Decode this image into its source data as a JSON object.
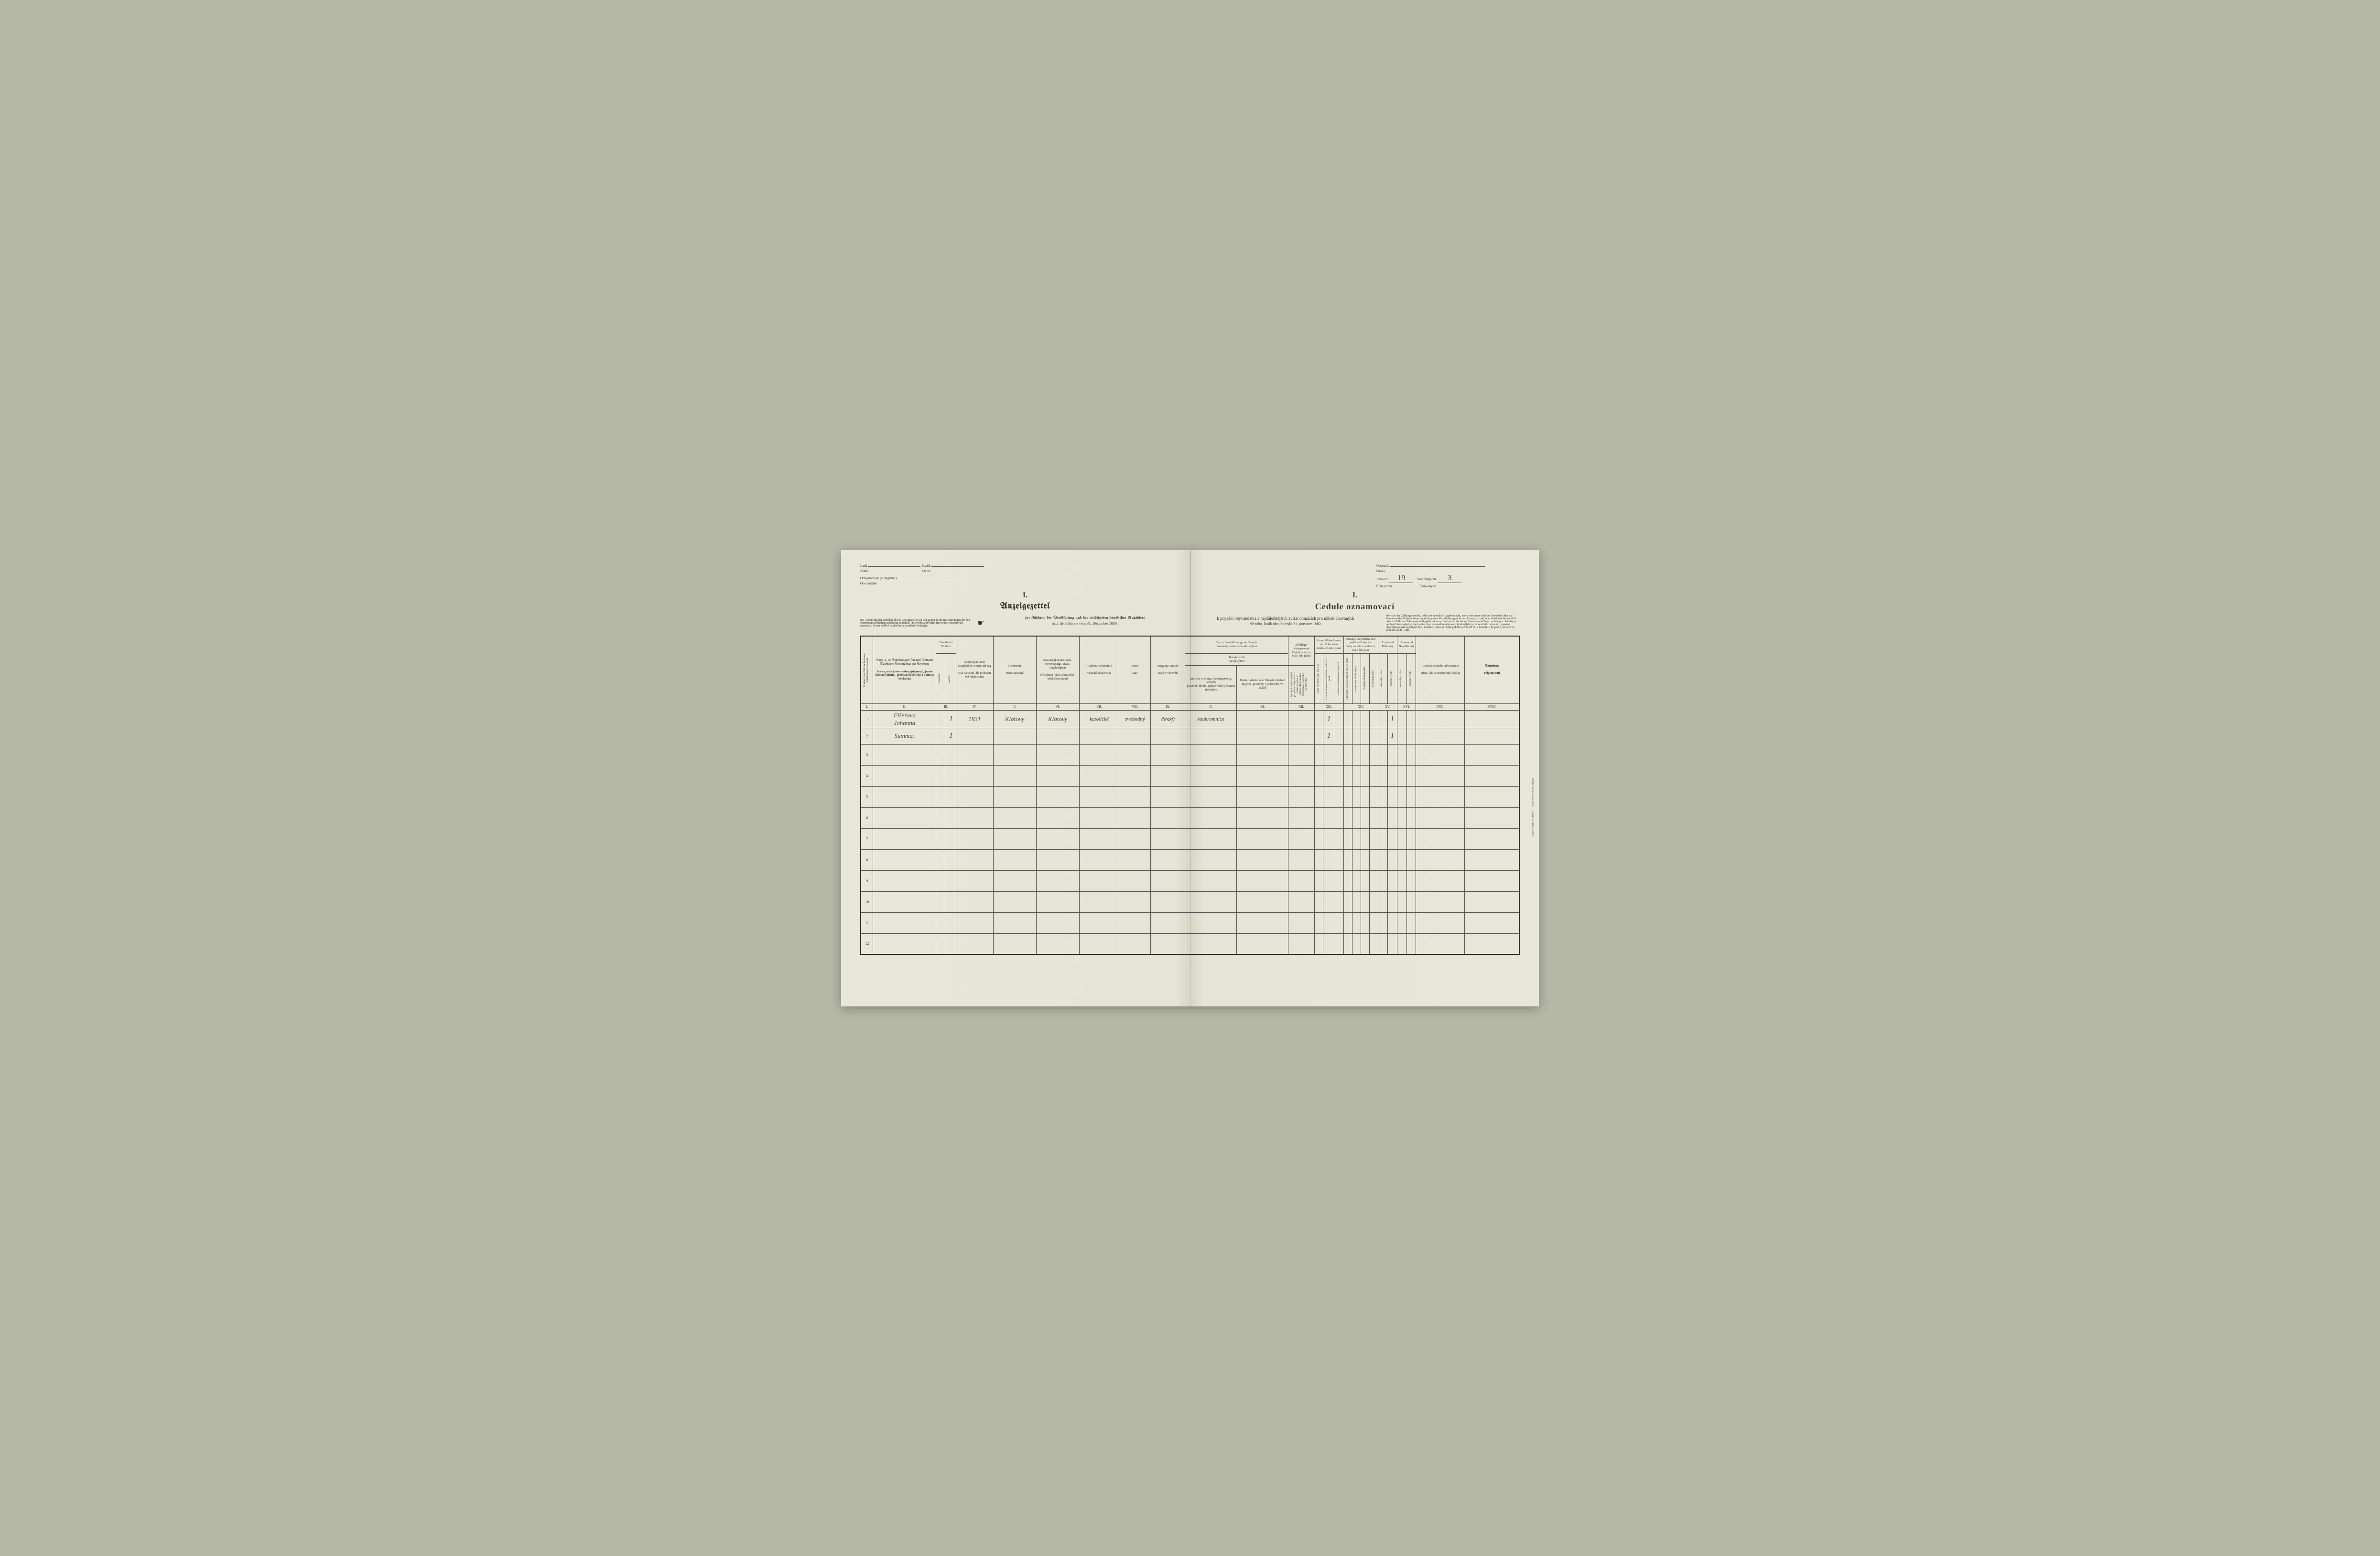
{
  "header": {
    "left": {
      "land_de": "Land",
      "land_cz": "Země",
      "bezirk_de": "Bezirk",
      "bezirk_cz": "Okres",
      "ort_de": "Ortsgemeinde (Gutsgebiet)",
      "ort_cz": "Obec místní"
    },
    "right": {
      "ortschaft_de": "Ortschaft",
      "ortschaft_cz": "Osada",
      "haus_de": "Haus-Nr.",
      "haus_cz": "Číslo domu",
      "haus_val": "19",
      "wohn_de": "Wohnungs-Nr.",
      "wohn_cz": "Číslo obydlí",
      "wohn_val": "3"
    },
    "title_left": {
      "roman": "I.",
      "main": "Anzeigezettel",
      "sub": "zur Zählung der Bevölkerung und der wichtigsten häuslichen Nutzthiere",
      "sub2": "nach dem Stande vom 31. December 1880."
    },
    "title_right": {
      "roman": "I.",
      "main": "Cedule oznamovací",
      "sub": "k popsání obyvatelstva a nejdůležitějších zvířat domácích pro užitek chovaných",
      "sub2": "dle toho, kolik obojího bylo 31. prosince 1880."
    },
    "instr_left": "Bei Ausfüllung der Rubriken dieses Anzeigezettels ist sich genau an die Bestimmungen der den Parteien mitgetheilten Belehrung zu halten. Při vyplňování rubrik této cedule oznamovací spravovati se jest bedlivě naučením nájemníkům vydaným.",
    "instr_right": "Wer sich der Zählung entzieht, oder eine unwahre Angabe macht, oder sonst einer nach der Vorschrift über die Vornahme der Volkszählung ihm obliegenden Verpflichtung nicht nachkommt, ist mit einer Geldbuße bis zu 20 fl. oder im Falle der Zahlungs-unfähigkeit mit einer Freiheitsstrafe bis zur Dauer von 4 Tagen zu belegen. Kdo by se popisu či konskripci vyhnul, nebo něco nepravdivě udal aneb jinak nějaké povinnosti dle nařízení o popsání obyvatelstva naň náležející dosti neučinil, potrestán bude pokutou až do 20 zl., a nemohl-li by platiti, trestem na svobodě až do 4 dnů."
  },
  "columns": {
    "roman": [
      "I.",
      "II.",
      "III.",
      "IV.",
      "V.",
      "VI.",
      "VII.",
      "VIII.",
      "IX.",
      "X.",
      "XI.",
      "XII.",
      "XIII.",
      "XIV.",
      "XV.",
      "XVI.",
      "XVII.",
      "XVIII."
    ],
    "c1": {
      "de": "Fortlaufende Zahl der Personen",
      "cz": "Pořád jdoucí číslo osob"
    },
    "c2": {
      "de": "Name, u. zw. Familienname (Zuname), Vorname (Taufname), Adelsprädicat und Adelsrang",
      "cz": "Jméno, totiž jméno rodiny (příjmení), jméno (křestné jméno), predikát šlechtický a hodnost šlechtická"
    },
    "c3": {
      "top_de": "Geschlecht",
      "top_cz": "Pohlaví",
      "m_de": "männlich",
      "m_cz": "mužské",
      "f_de": "weiblich",
      "f_cz": "ženské"
    },
    "c4": {
      "de": "Geburtsjahr, nach Möglichkeit Monat und Tag",
      "cz": "Rok narození, dle možnosti též měsíc a den"
    },
    "c5": {
      "de": "Geburtsort",
      "cz": "Místo narození"
    },
    "c6": {
      "de": "Zuständigkeit (Heimats-berechtigung), Staats-angehörigkeit",
      "cz": "Příslušnost (právo domovské) příslušnost státní"
    },
    "c7": {
      "de": "Glaubens-bekenntniß",
      "cz": "Vyznání náboženské"
    },
    "c8": {
      "de": "Stand",
      "cz": "Stav"
    },
    "c9": {
      "de": "Umgangs-sprache",
      "cz": "Jazyk v obcování"
    },
    "c10_11": {
      "top_de": "Beruf, Beschäftigung oder Erwerb",
      "top_cz": "Povolání, zaměstnání nebo výživa",
      "h_de": "Haupterwerb",
      "h_cz": "hlavní výživa"
    },
    "c10": {
      "de": "ämtliche Stellung, Nahrungszweig, Gewerbe",
      "cz": "postavení úřední, způsob výživy, živnost (řemeslo)"
    },
    "c11": {
      "de": "Besitz, Arbeits- oder Dienstverhältniß",
      "cz": "majetek, postavení v práci nebo ve službě"
    },
    "c12": {
      "top_de": "Allfälliger Nebenerwerb",
      "cz": "Vedlejší výživa, má-li kdo jakou"
    },
    "c13": {
      "top_de": "Kenntniß des Lesens und Schreibens",
      "cz": "Znalost čtení a psaní"
    },
    "c14": {
      "top_de": "Etwaige körperliche und geistige Gebrechen",
      "cz": "Vady na těle a na duchu, má-li kdo jaké"
    },
    "c15": {
      "de": "Anwesend",
      "cz": "Přítomný"
    },
    "c16": {
      "de": "Abwesend Ne-přítomný"
    },
    "c17": {
      "de": "Aufenthaltsort des Abwesenden",
      "cz": "Místo, kde se nepřítomný zdržuje"
    },
    "c18": {
      "de": "Anmerkung",
      "cz": "Připomenutí"
    },
    "c13_sub": {
      "a": "kann nur lesen\numí jen čísti",
      "b": "kann nur lesen und schreiben\numí čísti a psáti",
      "c": "kann nicht lesen\nneumí jen čísti"
    },
    "c14_sub": {
      "a": "auf beiden Augen blind\nna obě oči slepý",
      "b": "taubstumm\nhluchoněmý",
      "c": "irrsinnig\nchoromyslný",
      "d": "blödsinnig\nblbý"
    },
    "c15_sub": {
      "a": "zeitweilig\nna čas",
      "b": "dauernd\ntrvale"
    },
    "c16_sub": {
      "a": "zeitweilig\nna čas",
      "b": "dauernd\ntrvale"
    },
    "c12_sub": "bei der Landwirthschaft\npři polním hospodářství\nbeim Gewerbe u. Handel\npři živnosti a obchodu\nals Taglöhner\nco nádenník"
  },
  "rows": [
    {
      "num": "1",
      "name": "Fišerova\n Johanna",
      "sex_m": "",
      "sex_f": "1",
      "year": "1831",
      "birthplace": "Klatovy",
      "domicile": "Klatovy",
      "religion": "katolické",
      "status": "svobodný",
      "language": "český",
      "occupation": "soukromnice",
      "read_b": "1",
      "pres_b": "1"
    },
    {
      "num": "2",
      "name": "Summa:",
      "sex_f": "1",
      "read_b": "1",
      "pres_b": "1"
    }
  ],
  "empty_rows": [
    "3",
    "4",
    "5",
    "6",
    "7",
    "8",
    "9",
    "10",
    "11",
    "12"
  ],
  "printer": "Druck von W. Haase, Prag. — Tiskem A. Haase v Praze."
}
